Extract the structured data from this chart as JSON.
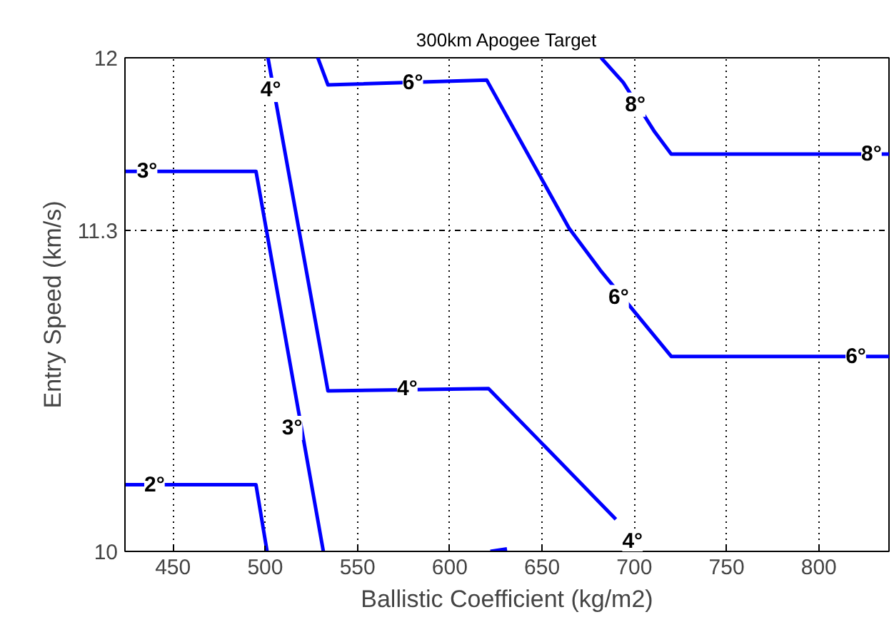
{
  "chart_data": {
    "type": "line",
    "title": "300km Apogee Target",
    "xlabel": "Ballistic Coefficient (kg/m2)",
    "ylabel": "Entry Speed (km/s)",
    "xlim": [
      424,
      838
    ],
    "ylim": [
      10,
      12
    ],
    "xticks": [
      450,
      500,
      550,
      600,
      650,
      700,
      750,
      800
    ],
    "yticks": [
      10,
      11.3,
      12
    ],
    "grid": true,
    "line_style": "solid",
    "marker": "none",
    "series": [
      {
        "color": "#0000ff",
        "x": [
          424,
          495,
          501
        ],
        "values": [
          10.27,
          10.27,
          10.0
        ]
      },
      {
        "color": "#0000ff",
        "x": [
          424,
          495,
          531.5
        ],
        "values": [
          11.54,
          11.54,
          10.0
        ]
      },
      {
        "color": "#0000ff",
        "x": [
          501.5,
          534,
          621,
          690
        ],
        "values": [
          12.0,
          10.65,
          10.66,
          10.13
        ]
      },
      {
        "color": "#0000ff",
        "x": [
          622,
          631
        ],
        "values": [
          10.0,
          10.01
        ]
      },
      {
        "color": "#0000ff",
        "x": [
          528.5,
          534,
          620,
          664.6,
          681.5,
          720,
          838
        ],
        "values": [
          12.0,
          11.89,
          11.91,
          11.31,
          11.14,
          10.79,
          10.79
        ]
      },
      {
        "color": "#0000ff",
        "x": [
          682,
          694,
          711,
          720,
          838
        ],
        "values": [
          12.0,
          11.9,
          11.7,
          11.61,
          11.61
        ]
      }
    ],
    "annotations": [
      {
        "text": "2°",
        "x": 440,
        "y": 10.27
      },
      {
        "text": "3°",
        "x": 436,
        "y": 11.54
      },
      {
        "text": "3°",
        "x": 514.6,
        "y": 10.5
      },
      {
        "text": "4°",
        "x": 503,
        "y": 11.87
      },
      {
        "text": "4°",
        "x": 577,
        "y": 10.66
      },
      {
        "text": "4°",
        "x": 699,
        "y": 10.04
      },
      {
        "text": "6°",
        "x": 580,
        "y": 11.9
      },
      {
        "text": "6°",
        "x": 691.5,
        "y": 11.03
      },
      {
        "text": "6°",
        "x": 820,
        "y": 10.79
      },
      {
        "text": "8°",
        "x": 700.5,
        "y": 11.81
      },
      {
        "text": "8°",
        "x": 828.5,
        "y": 11.61
      }
    ]
  }
}
